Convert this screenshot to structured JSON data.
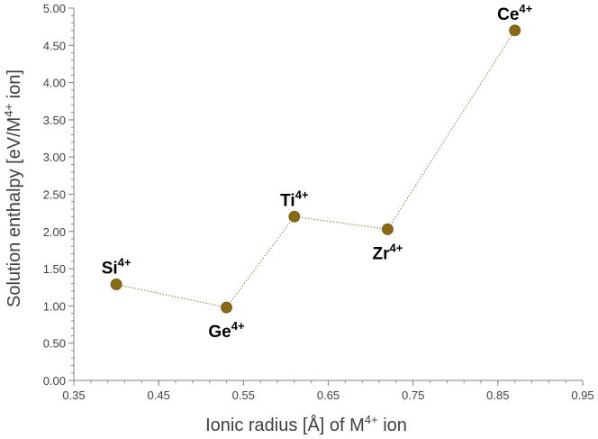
{
  "chart_data": {
    "type": "scatter",
    "xlabel": {
      "pre": "Ionic radius [Å] of M",
      "sup": "4+",
      "post": " ion"
    },
    "ylabel": {
      "pre": "Solution enthalpy [eV/M",
      "sup": "4+",
      "post": " ion]"
    },
    "xlim": [
      0.35,
      0.95
    ],
    "ylim": [
      0,
      5
    ],
    "x_ticks": [
      "0.35",
      "0.45",
      "0.55",
      "0.65",
      "0.75",
      "0.85",
      "0.95"
    ],
    "y_ticks": [
      "0.00",
      "0.50",
      "1.00",
      "1.50",
      "2.00",
      "2.50",
      "3.00",
      "3.50",
      "4.00",
      "4.50",
      "5.00"
    ],
    "grid": false,
    "legend": "none",
    "marker_color": "#8B6914",
    "line_color": "#8B7A3A",
    "line_style": "dotted",
    "points": [
      {
        "ion": "Si",
        "charge": "4+",
        "x": 0.4,
        "y": 1.29,
        "label_pos": "above"
      },
      {
        "ion": "Ge",
        "charge": "4+",
        "x": 0.53,
        "y": 0.98,
        "label_pos": "below"
      },
      {
        "ion": "Ti",
        "charge": "4+",
        "x": 0.61,
        "y": 2.2,
        "label_pos": "above"
      },
      {
        "ion": "Zr",
        "charge": "4+",
        "x": 0.72,
        "y": 2.03,
        "label_pos": "below"
      },
      {
        "ion": "Ce",
        "charge": "4+",
        "x": 0.87,
        "y": 4.7,
        "label_pos": "above"
      }
    ]
  }
}
